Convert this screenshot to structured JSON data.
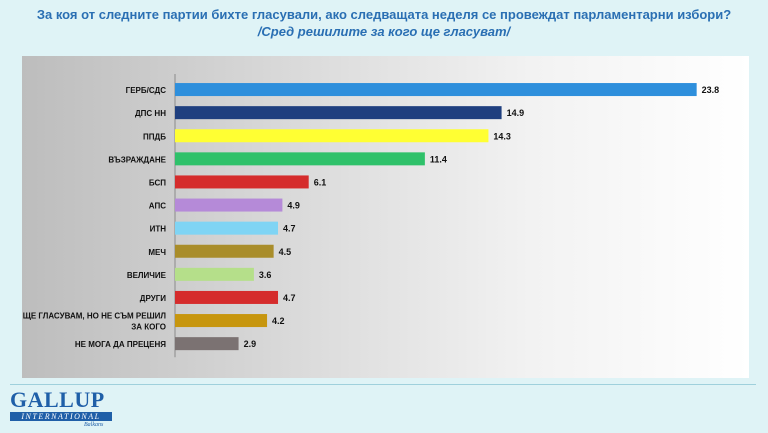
{
  "header": {
    "title": "За коя от следните партии бихте  гласували,  ако следващата неделя се провеждат парламентарни избори?",
    "subtitle": "/Сред решилите за кого ще гласуват/"
  },
  "logo": {
    "name": "GALLUP",
    "sub": "INTERNATIONAL",
    "region": "Balkans"
  },
  "chart_data": {
    "type": "bar",
    "orientation": "horizontal",
    "categories": [
      "ГЕРБ/СДС",
      "ДПС НН",
      "ППДБ",
      "ВЪЗРАЖДАНЕ",
      "БСП",
      "АПС",
      "ИТН",
      "МЕЧ",
      "ВЕЛИЧИЕ",
      "ДРУГИ",
      "ЩЕ ГЛАСУВАМ, НО НЕ СЪМ РЕШИЛ ЗА КОГО",
      "НЕ МОГА ДА ПРЕЦЕНЯ"
    ],
    "category_lines": [
      [
        "ГЕРБ/СДС"
      ],
      [
        "ДПС НН"
      ],
      [
        "ППДБ"
      ],
      [
        "ВЪЗРАЖДАНЕ"
      ],
      [
        "БСП"
      ],
      [
        "АПС"
      ],
      [
        "ИТН"
      ],
      [
        "МЕЧ"
      ],
      [
        "ВЕЛИЧИЕ"
      ],
      [
        "ДРУГИ"
      ],
      [
        "ЩЕ ГЛАСУВАМ, НО НЕ СЪМ РЕШИЛ",
        "ЗА КОГО"
      ],
      [
        "НЕ МОГА ДА ПРЕЦЕНЯ"
      ]
    ],
    "values": [
      23.8,
      14.9,
      14.3,
      11.4,
      6.1,
      4.9,
      4.7,
      4.5,
      3.6,
      4.7,
      4.2,
      2.9
    ],
    "value_labels": [
      "23.8",
      "14.9",
      "14.3",
      "11.4",
      "6.1",
      "4.9",
      "4.7",
      "4.5",
      "3.6",
      "4.7",
      "4.2",
      "2.9"
    ],
    "colors": [
      "#2e8fdc",
      "#1f3f7f",
      "#ffff33",
      "#2fc16a",
      "#d52c2c",
      "#b58ad8",
      "#7fd4f4",
      "#a98d2a",
      "#b5df8a",
      "#d52c2c",
      "#c7960e",
      "#7b7272"
    ],
    "xlim": [
      0,
      24.5
    ],
    "grid": false,
    "legend": "none"
  }
}
